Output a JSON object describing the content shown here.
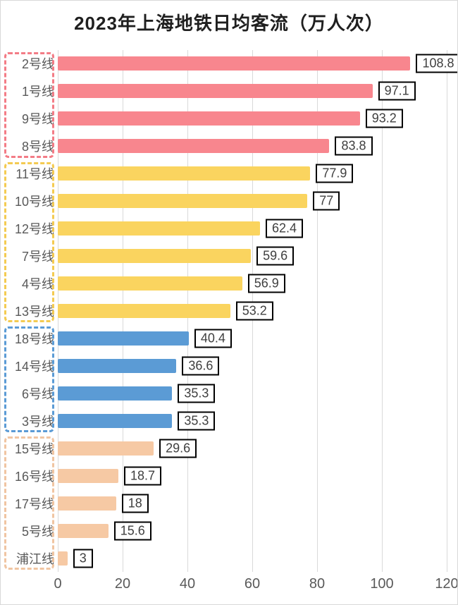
{
  "chart_data": {
    "type": "bar",
    "orientation": "horizontal",
    "title": "2023年上海地铁日均客流（万人次）",
    "xlabel": "",
    "ylabel": "",
    "xlim": [
      0,
      120
    ],
    "xticks": [
      0,
      20,
      40,
      60,
      80,
      100,
      120
    ],
    "grid": true,
    "legend": "none",
    "groups": [
      {
        "name": "tier-1-red",
        "bar_color": "#F8868E",
        "box_color": "#F37C86"
      },
      {
        "name": "tier-2-yellow",
        "bar_color": "#FAD45F",
        "box_color": "#F4CB52"
      },
      {
        "name": "tier-3-blue",
        "bar_color": "#5B9BD5",
        "box_color": "#5B9BD5"
      },
      {
        "name": "tier-4-peach",
        "bar_color": "#F6C9A4",
        "box_color": "#F0C5A2"
      }
    ],
    "items": [
      {
        "label": "2号线",
        "value": 108.8,
        "value_label": "108.8",
        "group": 0
      },
      {
        "label": "1号线",
        "value": 97.1,
        "value_label": "97.1",
        "group": 0
      },
      {
        "label": "9号线",
        "value": 93.2,
        "value_label": "93.2",
        "group": 0
      },
      {
        "label": "8号线",
        "value": 83.8,
        "value_label": "83.8",
        "group": 0
      },
      {
        "label": "11号线",
        "value": 77.9,
        "value_label": "77.9",
        "group": 1
      },
      {
        "label": "10号线",
        "value": 77,
        "value_label": "77",
        "group": 1
      },
      {
        "label": "12号线",
        "value": 62.4,
        "value_label": "62.4",
        "group": 1
      },
      {
        "label": "7号线",
        "value": 59.6,
        "value_label": "59.6",
        "group": 1
      },
      {
        "label": "4号线",
        "value": 56.9,
        "value_label": "56.9",
        "group": 1
      },
      {
        "label": "13号线",
        "value": 53.2,
        "value_label": "53.2",
        "group": 1
      },
      {
        "label": "18号线",
        "value": 40.4,
        "value_label": "40.4",
        "group": 2
      },
      {
        "label": "14号线",
        "value": 36.6,
        "value_label": "36.6",
        "group": 2
      },
      {
        "label": "6号线",
        "value": 35.3,
        "value_label": "35.3",
        "group": 2
      },
      {
        "label": "3号线",
        "value": 35.3,
        "value_label": "35.3",
        "group": 2
      },
      {
        "label": "15号线",
        "value": 29.6,
        "value_label": "29.6",
        "group": 3
      },
      {
        "label": "16号线",
        "value": 18.7,
        "value_label": "18.7",
        "group": 3
      },
      {
        "label": "17号线",
        "value": 18,
        "value_label": "18",
        "group": 3
      },
      {
        "label": "5号线",
        "value": 15.6,
        "value_label": "15.6",
        "group": 3
      },
      {
        "label": "浦江线",
        "value": 3,
        "value_label": "3",
        "group": 3
      }
    ],
    "colors": {
      "gridline": "#D9D9D9",
      "axis_text": "#595959",
      "value_text": "#3F3F3F",
      "title_text": "#1F1F1F",
      "value_box_border": "#000000",
      "frame_border": "#D9D9D9"
    }
  }
}
